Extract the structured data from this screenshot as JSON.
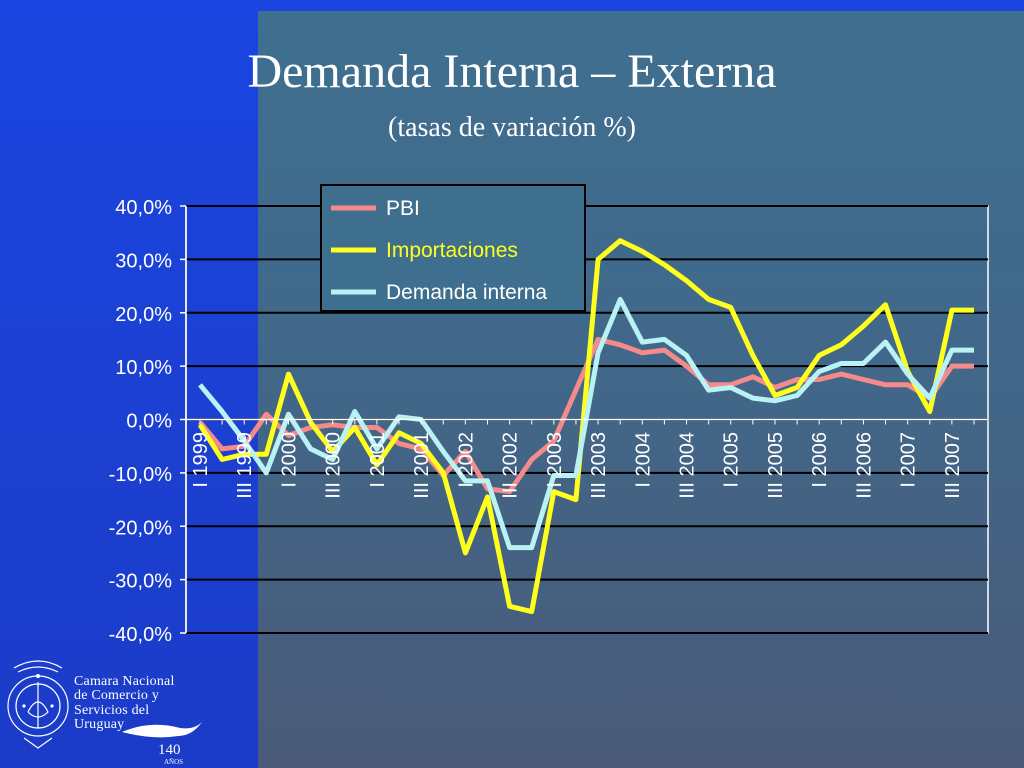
{
  "title": "Demanda Interna – Externa",
  "subtitle": "(tasas de variación %)",
  "colors": {
    "pbi": "#f58a8a",
    "importaciones": "#ffff1e",
    "demanda": "#b8f2f4"
  },
  "logo": {
    "line1": "Camara Nacional",
    "line2": "de Comercio y",
    "line3": "Servicios del",
    "line4": "Uruguay",
    "years": "140",
    "years_label": "AÑOS"
  },
  "chart_data": {
    "type": "line",
    "title": "",
    "xlabel": "",
    "ylabel": "",
    "ylim": [
      -40,
      40
    ],
    "yticks": [
      "40,0%",
      "30,0%",
      "20,0%",
      "10,0%",
      "0,0%",
      "-10,0%",
      "-20,0%",
      "-30,0%",
      "-40,0%"
    ],
    "grid": "horizontal",
    "legend": "top-center",
    "categories": [
      "I 1999",
      "II 1999",
      "III 1999",
      "IV 1999",
      "I 2000",
      "II 2000",
      "III 2000",
      "IV 2000",
      "I 2001",
      "II 2001",
      "III 2001",
      "IV 2001",
      "I 2002",
      "II 2002",
      "III 2002",
      "IV 2002",
      "I 2003",
      "II 2003",
      "III 2003",
      "IV 2003",
      "I 2004",
      "II 2004",
      "III 2004",
      "IV 2004",
      "I 2005",
      "II 2005",
      "III 2005",
      "IV 2005",
      "I 2006",
      "II 2006",
      "III 2006",
      "IV 2006",
      "I 2007",
      "II 2007",
      "III 2007",
      "IV 2007"
    ],
    "tick_labels": [
      "I 1999",
      "III 1999",
      "I 2000",
      "III 2000",
      "I 2001",
      "III 2001",
      "I 2002",
      "III 2002",
      "I 2003",
      "III 2003",
      "I 2004",
      "III 2004",
      "I 2005",
      "III 2005",
      "I 2006",
      "III 2006",
      "I 2007",
      "III 2007"
    ],
    "series": [
      {
        "name": "PBI",
        "values": [
          -0.5,
          -5.5,
          -5.0,
          1.0,
          -3.0,
          -1.5,
          -1.0,
          -1.5,
          -1.5,
          -4.5,
          -5.5,
          -10.5,
          -6.0,
          -13.0,
          -13.5,
          -7.5,
          -4.0,
          5.5,
          15.0,
          14.0,
          12.5,
          13.0,
          10.0,
          6.5,
          6.5,
          8.0,
          6.0,
          7.5,
          7.5,
          8.5,
          7.5,
          6.5,
          6.5,
          4.0,
          10.0,
          10.0
        ]
      },
      {
        "name": "Importaciones",
        "values": [
          -1.0,
          -7.5,
          -6.5,
          -6.5,
          8.5,
          -0.5,
          -6.0,
          -1.5,
          -8.5,
          -2.5,
          -4.5,
          -10.0,
          -25.0,
          -14.5,
          -35.0,
          -36.0,
          -13.5,
          -15.0,
          30.0,
          33.5,
          31.5,
          29.0,
          26.0,
          22.5,
          21.0,
          12.0,
          4.5,
          6.0,
          12.0,
          14.0,
          17.5,
          21.5,
          9.0,
          1.5,
          20.5,
          20.5
        ]
      },
      {
        "name": "Demanda interna",
        "values": [
          6.5,
          1.5,
          -4.0,
          -10.0,
          1.0,
          -5.5,
          -7.5,
          1.5,
          -5.5,
          0.5,
          0.0,
          -6.0,
          -11.5,
          -11.5,
          -24.0,
          -24.0,
          -10.5,
          -10.5,
          12.5,
          22.5,
          14.5,
          15.0,
          12.0,
          5.5,
          6.0,
          4.0,
          3.5,
          4.5,
          9.0,
          10.5,
          10.5,
          14.5,
          8.5,
          4.0,
          13.0,
          13.0
        ]
      }
    ]
  }
}
